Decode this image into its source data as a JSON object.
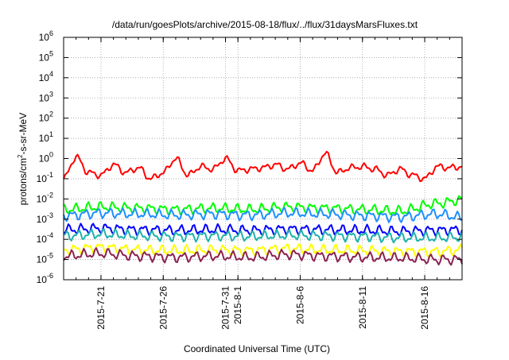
{
  "chart_data": {
    "type": "line",
    "title": "/data/run/goesPlots/archive/2015-08-18/flux/../flux/31daysMarsFluxes.txt",
    "xlabel": "Coordinated Universal Time (UTC)",
    "ylabel": "protons/cm²-s-sr-MeV",
    "ylabel_parts": {
      "before": "protons/cm",
      "sup": "2",
      "after": "-s-sr-MeV"
    },
    "y_scale": "log",
    "ylim": [
      1e-06,
      1000000.0
    ],
    "y_ticks": [
      {
        "value": 1e-06,
        "base": "10",
        "exp": "-6"
      },
      {
        "value": 1e-05,
        "base": "10",
        "exp": "-5"
      },
      {
        "value": 0.0001,
        "base": "10",
        "exp": "-4"
      },
      {
        "value": 0.001,
        "base": "10",
        "exp": "-3"
      },
      {
        "value": 0.01,
        "base": "10",
        "exp": "-2"
      },
      {
        "value": 0.1,
        "base": "10",
        "exp": "-1"
      },
      {
        "value": 1,
        "base": "10",
        "exp": "0"
      },
      {
        "value": 10,
        "base": "10",
        "exp": "1"
      },
      {
        "value": 100,
        "base": "10",
        "exp": "2"
      },
      {
        "value": 1000,
        "base": "10",
        "exp": "3"
      },
      {
        "value": 10000,
        "base": "10",
        "exp": "4"
      },
      {
        "value": 100000,
        "base": "10",
        "exp": "5"
      },
      {
        "value": 1000000,
        "base": "10",
        "exp": "6"
      }
    ],
    "xlim": [
      "2015-07-18",
      "2015-08-19"
    ],
    "x_ticks": [
      {
        "date": "2015-07-21",
        "label": "2015-7-21"
      },
      {
        "date": "2015-07-26",
        "label": "2015-7-26"
      },
      {
        "date": "2015-07-31",
        "label": "2015-7-31"
      },
      {
        "date": "2015-08-01",
        "label": "2015-8-1"
      },
      {
        "date": "2015-08-06",
        "label": "2015-8-6"
      },
      {
        "date": "2015-08-11",
        "label": "2015-8-11"
      },
      {
        "date": "2015-08-16",
        "label": "2015-8-16"
      }
    ],
    "grid": true,
    "series": [
      {
        "color": "#ff0000",
        "x": [
          "2015-07-18",
          "2015-07-19",
          "2015-07-20",
          "2015-07-21",
          "2015-07-22",
          "2015-07-23",
          "2015-07-24",
          "2015-07-25",
          "2015-07-26",
          "2015-07-27",
          "2015-07-28",
          "2015-07-29",
          "2015-07-30",
          "2015-07-31",
          "2015-08-01",
          "2015-08-02",
          "2015-08-03",
          "2015-08-04",
          "2015-08-05",
          "2015-08-06",
          "2015-08-07",
          "2015-08-08",
          "2015-08-09",
          "2015-08-10",
          "2015-08-11",
          "2015-08-12",
          "2015-08-13",
          "2015-08-14",
          "2015-08-15",
          "2015-08-16",
          "2015-08-17",
          "2015-08-18",
          "2015-08-19"
        ],
        "values": [
          0.1,
          1.2,
          0.2,
          0.15,
          0.5,
          0.2,
          0.35,
          0.1,
          0.2,
          1.0,
          0.15,
          0.4,
          0.3,
          1.0,
          0.25,
          0.3,
          0.35,
          0.5,
          0.3,
          0.6,
          0.25,
          1.8,
          0.2,
          0.35,
          0.4,
          0.3,
          0.15,
          0.3,
          0.15,
          0.1,
          0.4,
          0.35,
          0.4
        ]
      },
      {
        "color": "#00ff00",
        "x": [
          "2015-07-18",
          "2015-07-21",
          "2015-07-24",
          "2015-07-27",
          "2015-07-30",
          "2015-08-02",
          "2015-08-05",
          "2015-08-08",
          "2015-08-11",
          "2015-08-14",
          "2015-08-17",
          "2015-08-19"
        ],
        "values": [
          0.003,
          0.004,
          0.0035,
          0.003,
          0.0035,
          0.003,
          0.004,
          0.0035,
          0.003,
          0.0025,
          0.006,
          0.009
        ]
      },
      {
        "color": "#1e90ff",
        "x": [
          "2015-07-18",
          "2015-07-21",
          "2015-07-24",
          "2015-07-27",
          "2015-07-30",
          "2015-08-02",
          "2015-08-05",
          "2015-08-08",
          "2015-08-11",
          "2015-08-14",
          "2015-08-17",
          "2015-08-19"
        ],
        "values": [
          0.0015,
          0.002,
          0.0018,
          0.0016,
          0.0018,
          0.0016,
          0.002,
          0.0018,
          0.0015,
          0.0013,
          0.0018,
          0.0012
        ]
      },
      {
        "color": "#0000ff",
        "x": [
          "2015-07-18",
          "2015-07-21",
          "2015-07-24",
          "2015-07-27",
          "2015-07-30",
          "2015-08-02",
          "2015-08-05",
          "2015-08-08",
          "2015-08-11",
          "2015-08-14",
          "2015-08-17",
          "2015-08-19"
        ],
        "values": [
          0.0003,
          0.00035,
          0.0003,
          0.00028,
          0.0003,
          0.00028,
          0.00032,
          0.0003,
          0.00028,
          0.00025,
          0.00028,
          0.0003
        ]
      },
      {
        "color": "#20b2aa",
        "x": [
          "2015-07-18",
          "2015-07-21",
          "2015-07-24",
          "2015-07-27",
          "2015-07-30",
          "2015-08-02",
          "2015-08-05",
          "2015-08-08",
          "2015-08-11",
          "2015-08-14",
          "2015-08-17",
          "2015-08-19"
        ],
        "values": [
          0.00015,
          0.00018,
          0.00015,
          0.00014,
          0.00015,
          0.00014,
          0.00016,
          0.00015,
          0.00014,
          0.00012,
          0.00012,
          0.00013
        ]
      },
      {
        "color": "#ffff00",
        "x": [
          "2015-07-18",
          "2015-07-21",
          "2015-07-24",
          "2015-07-27",
          "2015-07-30",
          "2015-08-02",
          "2015-08-05",
          "2015-08-08",
          "2015-08-11",
          "2015-08-14",
          "2015-08-17",
          "2015-08-19"
        ],
        "values": [
          3e-05,
          4e-05,
          3e-05,
          2.8e-05,
          3e-05,
          2.8e-05,
          3.5e-05,
          3e-05,
          2.8e-05,
          2.5e-05,
          2.5e-05,
          3e-05
        ]
      },
      {
        "color": "#8b2252",
        "x": [
          "2015-07-18",
          "2015-07-21",
          "2015-07-24",
          "2015-07-27",
          "2015-07-30",
          "2015-08-02",
          "2015-08-05",
          "2015-08-08",
          "2015-08-11",
          "2015-08-14",
          "2015-08-17",
          "2015-08-19"
        ],
        "values": [
          1.5e-05,
          2e-05,
          1.5e-05,
          1.3e-05,
          1.5e-05,
          1.3e-05,
          1.8e-05,
          1.5e-05,
          1.3e-05,
          1.2e-05,
          1e-05,
          1e-05
        ]
      }
    ]
  }
}
